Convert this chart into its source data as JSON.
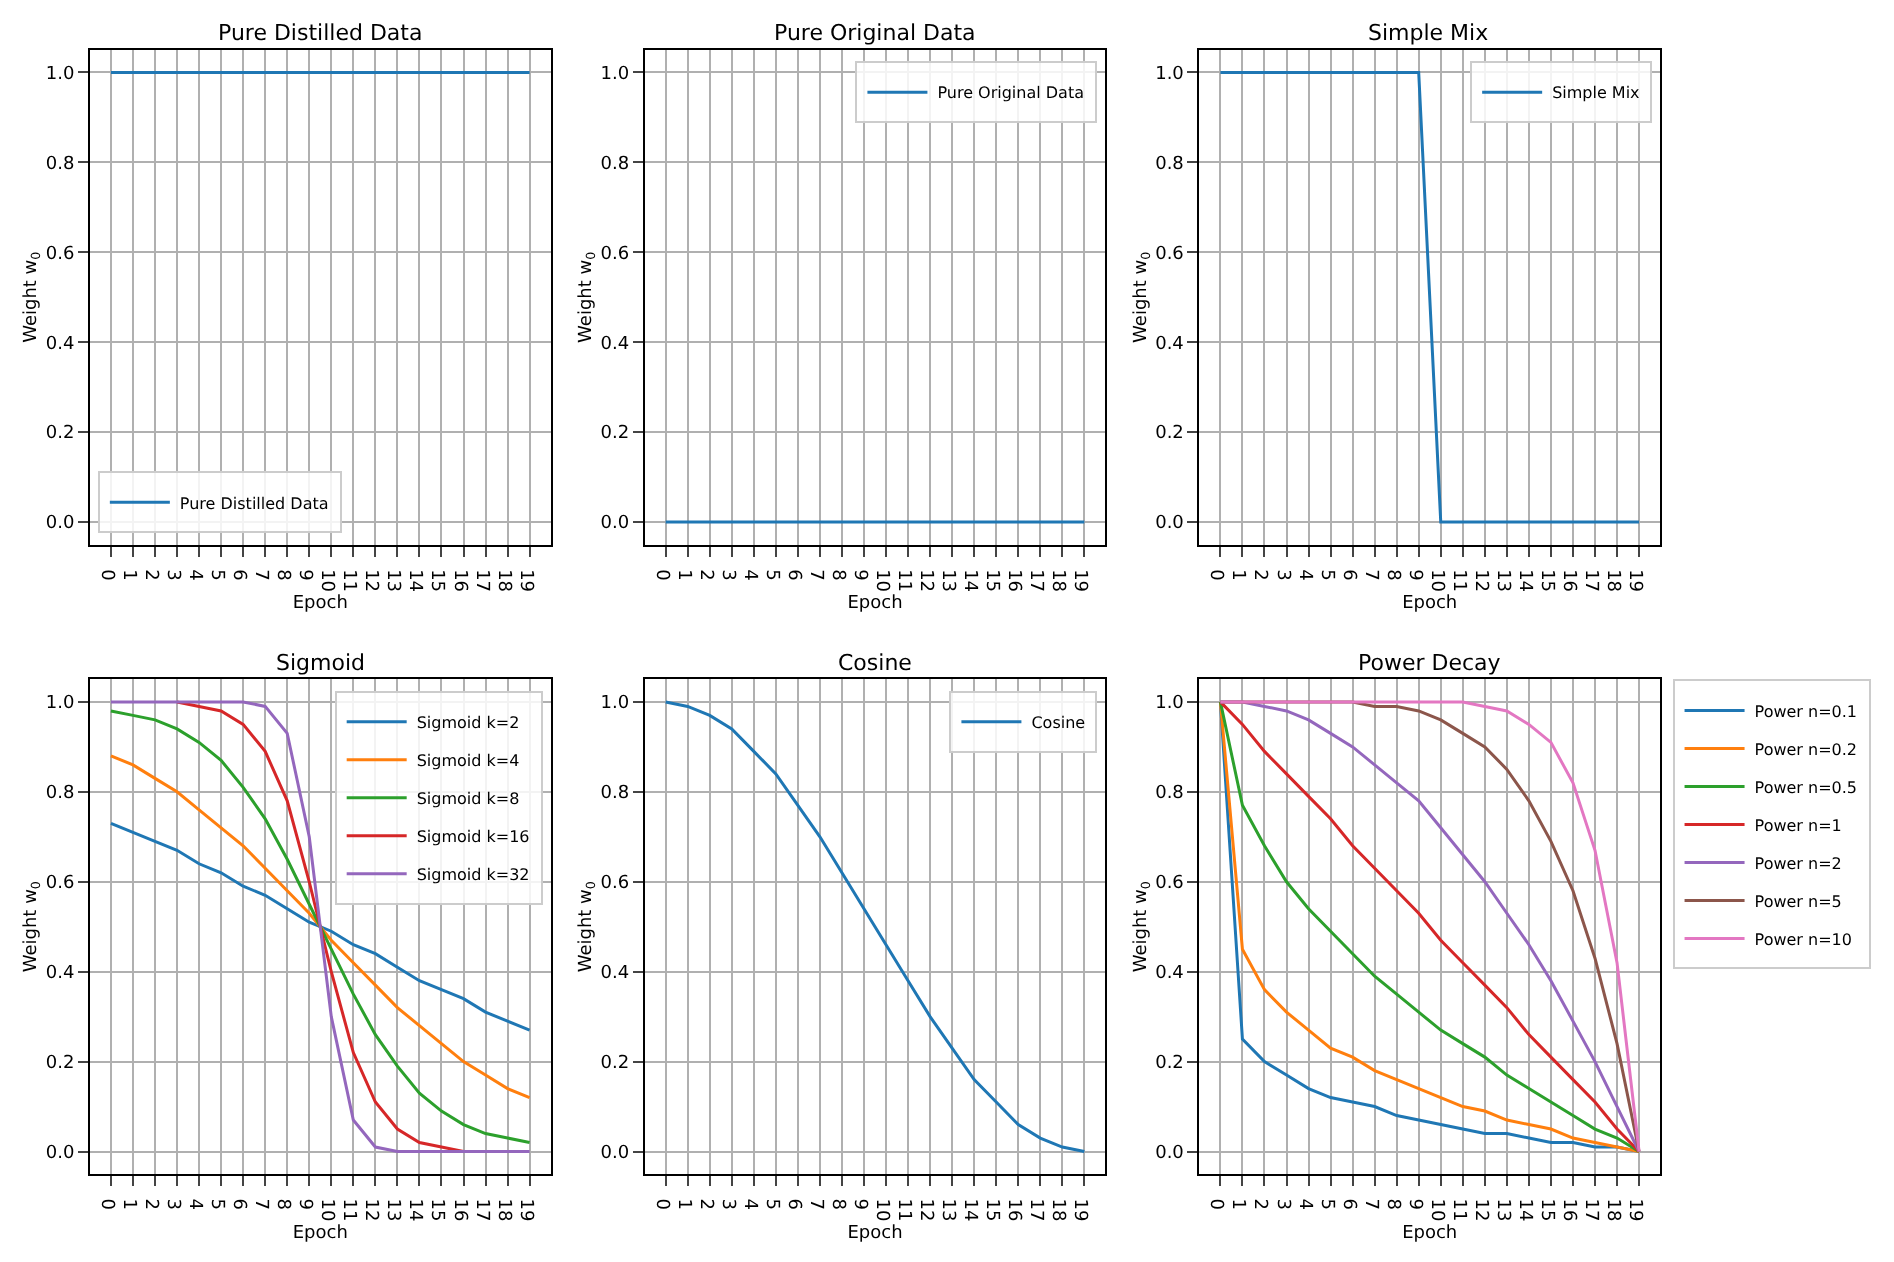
{
  "chart_data": [
    {
      "type": "line",
      "title": "Pure Distilled Data",
      "xlabel": "Epoch",
      "ylabel": "Weight w$_{0}$",
      "x": [
        0,
        1,
        2,
        3,
        4,
        5,
        6,
        7,
        8,
        9,
        10,
        11,
        12,
        13,
        14,
        15,
        16,
        17,
        18,
        19
      ],
      "xlim": [
        -0.95,
        19.95
      ],
      "xticks": [
        0,
        1,
        2,
        3,
        4,
        5,
        6,
        7,
        8,
        9,
        10,
        11,
        12,
        13,
        14,
        15,
        16,
        17,
        18,
        19
      ],
      "ylim": [
        -0.05,
        1.05
      ],
      "yticks": [
        {
          "value": 0,
          "label": "0.0"
        },
        {
          "value": 0.2,
          "label": "0.2"
        },
        {
          "value": 0.4,
          "label": "0.4"
        },
        {
          "value": 0.6,
          "label": "0.6"
        },
        {
          "value": 0.8,
          "label": "0.8"
        },
        {
          "value": 1,
          "label": "1.0"
        }
      ],
      "grid": true,
      "legend": "bottom left",
      "series": [
        {
          "name": "Pure Distilled Data",
          "color": "#1f77b4",
          "values": [
            1,
            1,
            1,
            1,
            1,
            1,
            1,
            1,
            1,
            1,
            1,
            1,
            1,
            1,
            1,
            1,
            1,
            1,
            1,
            1
          ]
        }
      ]
    },
    {
      "type": "line",
      "title": "Pure Original Data",
      "xlabel": "Epoch",
      "ylabel": "Weight w$_{0}$",
      "x": [
        0,
        1,
        2,
        3,
        4,
        5,
        6,
        7,
        8,
        9,
        10,
        11,
        12,
        13,
        14,
        15,
        16,
        17,
        18,
        19
      ],
      "xlim": [
        -0.95,
        19.95
      ],
      "xticks": [
        0,
        1,
        2,
        3,
        4,
        5,
        6,
        7,
        8,
        9,
        10,
        11,
        12,
        13,
        14,
        15,
        16,
        17,
        18,
        19
      ],
      "ylim": [
        -0.05,
        1.05
      ],
      "yticks": [
        {
          "value": 0,
          "label": "0.0"
        },
        {
          "value": 0.2,
          "label": "0.2"
        },
        {
          "value": 0.4,
          "label": "0.4"
        },
        {
          "value": 0.6,
          "label": "0.6"
        },
        {
          "value": 0.8,
          "label": "0.8"
        },
        {
          "value": 1,
          "label": "1.0"
        }
      ],
      "grid": true,
      "legend": "top right",
      "series": [
        {
          "name": "Pure Original Data",
          "color": "#1f77b4",
          "values": [
            0,
            0,
            0,
            0,
            0,
            0,
            0,
            0,
            0,
            0,
            0,
            0,
            0,
            0,
            0,
            0,
            0,
            0,
            0,
            0
          ]
        }
      ]
    },
    {
      "type": "line",
      "title": "Simple Mix",
      "xlabel": "Epoch",
      "ylabel": "Weight w$_{0}$",
      "x": [
        0,
        1,
        2,
        3,
        4,
        5,
        6,
        7,
        8,
        9,
        10,
        11,
        12,
        13,
        14,
        15,
        16,
        17,
        18,
        19
      ],
      "xlim": [
        -0.95,
        19.95
      ],
      "xticks": [
        0,
        1,
        2,
        3,
        4,
        5,
        6,
        7,
        8,
        9,
        10,
        11,
        12,
        13,
        14,
        15,
        16,
        17,
        18,
        19
      ],
      "ylim": [
        -0.05,
        1.05
      ],
      "yticks": [
        {
          "value": 0,
          "label": "0.0"
        },
        {
          "value": 0.2,
          "label": "0.2"
        },
        {
          "value": 0.4,
          "label": "0.4"
        },
        {
          "value": 0.6,
          "label": "0.6"
        },
        {
          "value": 0.8,
          "label": "0.8"
        },
        {
          "value": 1,
          "label": "1.0"
        }
      ],
      "grid": true,
      "legend": "top right",
      "series": [
        {
          "name": "Simple Mix",
          "color": "#1f77b4",
          "values": [
            1,
            1,
            1,
            1,
            1,
            1,
            1,
            1,
            1,
            1,
            0,
            0,
            0,
            0,
            0,
            0,
            0,
            0,
            0,
            0
          ]
        }
      ]
    },
    {
      "type": "line",
      "title": "Sigmoid",
      "xlabel": "Epoch",
      "ylabel": "Weight w$_{0}$",
      "x": [
        0,
        1,
        2,
        3,
        4,
        5,
        6,
        7,
        8,
        9,
        10,
        11,
        12,
        13,
        14,
        15,
        16,
        17,
        18,
        19
      ],
      "xlim": [
        -0.95,
        19.95
      ],
      "xticks": [
        0,
        1,
        2,
        3,
        4,
        5,
        6,
        7,
        8,
        9,
        10,
        11,
        12,
        13,
        14,
        15,
        16,
        17,
        18,
        19
      ],
      "ylim": [
        -0.05,
        1.05
      ],
      "yticks": [
        {
          "value": 0,
          "label": "0.0"
        },
        {
          "value": 0.2,
          "label": "0.2"
        },
        {
          "value": 0.4,
          "label": "0.4"
        },
        {
          "value": 0.6,
          "label": "0.6"
        },
        {
          "value": 0.8,
          "label": "0.8"
        },
        {
          "value": 1,
          "label": "1.0"
        }
      ],
      "grid": true,
      "legend": "top right",
      "series": [
        {
          "name": "Sigmoid k=2",
          "color": "#1f77b4",
          "values": [
            0.73,
            0.71,
            0.69,
            0.67,
            0.64,
            0.62,
            0.59,
            0.57,
            0.54,
            0.51,
            0.49,
            0.46,
            0.44,
            0.41,
            0.38,
            0.36,
            0.34,
            0.31,
            0.29,
            0.27
          ]
        },
        {
          "name": "Sigmoid k=4",
          "color": "#ff7f0e",
          "values": [
            0.88,
            0.86,
            0.83,
            0.8,
            0.76,
            0.72,
            0.68,
            0.63,
            0.58,
            0.53,
            0.47,
            0.42,
            0.37,
            0.32,
            0.28,
            0.24,
            0.2,
            0.17,
            0.14,
            0.12
          ]
        },
        {
          "name": "Sigmoid k=8",
          "color": "#2ca02c",
          "values": [
            0.98,
            0.97,
            0.96,
            0.94,
            0.91,
            0.87,
            0.81,
            0.74,
            0.65,
            0.55,
            0.45,
            0.35,
            0.26,
            0.19,
            0.13,
            0.09,
            0.06,
            0.04,
            0.03,
            0.02
          ]
        },
        {
          "name": "Sigmoid k=16",
          "color": "#d62728",
          "values": [
            null,
            null,
            null,
            1.0,
            0.99,
            0.98,
            0.95,
            0.89,
            0.78,
            0.6,
            0.4,
            0.22,
            0.11,
            0.05,
            0.02,
            0.01,
            0.0,
            0.0,
            null,
            null
          ]
        },
        {
          "name": "Sigmoid k=32",
          "color": "#9467bd",
          "values": [
            1.0,
            1.0,
            1.0,
            1.0,
            1.0,
            1.0,
            1.0,
            0.99,
            0.93,
            0.7,
            0.3,
            0.07,
            0.01,
            0.0,
            0.0,
            0.0,
            0.0,
            0.0,
            0.0,
            0.0
          ]
        }
      ]
    },
    {
      "type": "line",
      "title": "Cosine",
      "xlabel": "Epoch",
      "ylabel": "Weight w$_{0}$",
      "x": [
        0,
        1,
        2,
        3,
        4,
        5,
        6,
        7,
        8,
        9,
        10,
        11,
        12,
        13,
        14,
        15,
        16,
        17,
        18,
        19
      ],
      "xlim": [
        -0.95,
        19.95
      ],
      "xticks": [
        0,
        1,
        2,
        3,
        4,
        5,
        6,
        7,
        8,
        9,
        10,
        11,
        12,
        13,
        14,
        15,
        16,
        17,
        18,
        19
      ],
      "ylim": [
        -0.05,
        1.05
      ],
      "yticks": [
        {
          "value": 0,
          "label": "0.0"
        },
        {
          "value": 0.2,
          "label": "0.2"
        },
        {
          "value": 0.4,
          "label": "0.4"
        },
        {
          "value": 0.6,
          "label": "0.6"
        },
        {
          "value": 0.8,
          "label": "0.8"
        },
        {
          "value": 1,
          "label": "1.0"
        }
      ],
      "grid": true,
      "legend": "top right",
      "series": [
        {
          "name": "Cosine",
          "color": "#1f77b4",
          "values": [
            1.0,
            0.99,
            0.97,
            0.94,
            0.89,
            0.84,
            0.77,
            0.7,
            0.62,
            0.54,
            0.46,
            0.38,
            0.3,
            0.23,
            0.16,
            0.11,
            0.06,
            0.03,
            0.01,
            0.0
          ]
        }
      ]
    },
    {
      "type": "line",
      "title": "Power Decay",
      "xlabel": "Epoch",
      "ylabel": "Weight w$_{0}$",
      "x": [
        0,
        1,
        2,
        3,
        4,
        5,
        6,
        7,
        8,
        9,
        10,
        11,
        12,
        13,
        14,
        15,
        16,
        17,
        18,
        19
      ],
      "xlim": [
        -0.95,
        19.95
      ],
      "xticks": [
        0,
        1,
        2,
        3,
        4,
        5,
        6,
        7,
        8,
        9,
        10,
        11,
        12,
        13,
        14,
        15,
        16,
        17,
        18,
        19
      ],
      "ylim": [
        -0.05,
        1.05
      ],
      "yticks": [
        {
          "value": 0,
          "label": "0.0"
        },
        {
          "value": 0.2,
          "label": "0.2"
        },
        {
          "value": 0.4,
          "label": "0.4"
        },
        {
          "value": 0.6,
          "label": "0.6"
        },
        {
          "value": 0.8,
          "label": "0.8"
        },
        {
          "value": 1,
          "label": "1.0"
        }
      ],
      "grid": true,
      "legend": "right",
      "series": [
        {
          "name": "Power n=0.1",
          "color": "#1f77b4",
          "values": [
            1,
            0.25,
            0.2,
            0.17,
            0.14,
            0.12,
            0.11,
            0.1,
            0.08,
            0.07,
            0.06,
            0.05,
            0.04,
            0.04,
            0.03,
            0.02,
            0.02,
            0.01,
            0.01,
            0
          ]
        },
        {
          "name": "Power n=0.2",
          "color": "#ff7f0e",
          "values": [
            1,
            0.45,
            0.36,
            0.31,
            0.27,
            0.23,
            0.21,
            0.18,
            0.16,
            0.14,
            0.12,
            0.1,
            0.09,
            0.07,
            0.06,
            0.05,
            0.03,
            0.02,
            0.01,
            0
          ]
        },
        {
          "name": "Power n=0.5",
          "color": "#2ca02c",
          "values": [
            1,
            0.77,
            0.68,
            0.6,
            0.54,
            0.49,
            0.44,
            0.39,
            0.35,
            0.31,
            0.27,
            0.24,
            0.21,
            0.17,
            0.14,
            0.11,
            0.08,
            0.05,
            0.03,
            0
          ]
        },
        {
          "name": "Power n=1",
          "color": "#d62728",
          "values": [
            1,
            0.95,
            0.89,
            0.84,
            0.79,
            0.74,
            0.68,
            0.63,
            0.58,
            0.53,
            0.47,
            0.42,
            0.37,
            0.32,
            0.26,
            0.21,
            0.16,
            0.11,
            0.05,
            0
          ]
        },
        {
          "name": "Power n=2",
          "color": "#9467bd",
          "values": [
            1,
            1.0,
            0.99,
            0.98,
            0.96,
            0.93,
            0.9,
            0.86,
            0.82,
            0.78,
            0.72,
            0.66,
            0.6,
            0.53,
            0.46,
            0.38,
            0.29,
            0.2,
            0.1,
            0
          ]
        },
        {
          "name": "Power n=5",
          "color": "#8c564b",
          "values": [
            1,
            1.0,
            1.0,
            1.0,
            1.0,
            1.0,
            1.0,
            0.99,
            0.99,
            0.98,
            0.96,
            0.93,
            0.9,
            0.85,
            0.78,
            0.69,
            0.58,
            0.43,
            0.24,
            0
          ]
        },
        {
          "name": "Power n=10",
          "color": "#e377c2",
          "values": [
            1,
            1.0,
            1.0,
            1.0,
            1.0,
            1.0,
            1.0,
            1.0,
            1.0,
            1.0,
            1.0,
            1.0,
            0.99,
            0.98,
            0.95,
            0.91,
            0.82,
            0.67,
            0.42,
            0
          ]
        }
      ]
    }
  ]
}
